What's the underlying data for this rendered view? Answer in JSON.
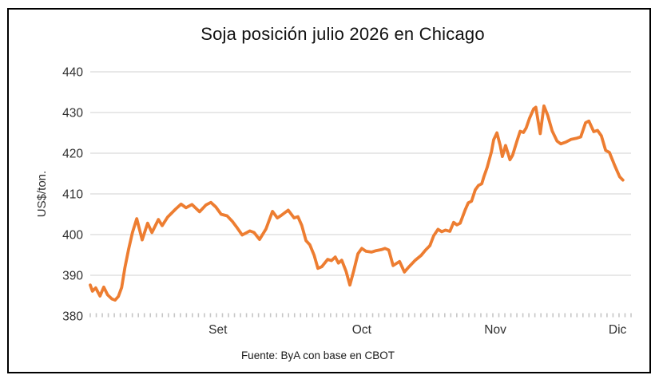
{
  "figure": {
    "title": "Soja posición julio 2026 en Chicago",
    "source": "Fuente: ByA con base en CBOT"
  },
  "chart_data": {
    "type": "line",
    "title": "Soja posición julio 2026 en Chicago",
    "ylabel": "US$/ton.",
    "xlabel": "",
    "ylim": [
      380,
      440
    ],
    "ytick_step": 10,
    "yticks": [
      380,
      390,
      400,
      410,
      420,
      430,
      440
    ],
    "x_ticks": [
      {
        "label": "Set",
        "pos": 0.236
      },
      {
        "label": "Oct",
        "pos": 0.502
      },
      {
        "label": "Nov",
        "pos": 0.749
      },
      {
        "label": "Dic",
        "pos": 0.975
      }
    ],
    "grid": true,
    "legend": "none",
    "line_color": "#ED7D31",
    "gridline_color": "#D9D9D9",
    "tick_color": "#C6C6C6",
    "axis_text_color": "#303030",
    "minor_tick_count": 90,
    "points": [
      [
        0.0,
        387.6
      ],
      [
        0.004,
        386.1
      ],
      [
        0.01,
        386.9
      ],
      [
        0.018,
        384.9
      ],
      [
        0.025,
        387.1
      ],
      [
        0.032,
        385.2
      ],
      [
        0.04,
        384.2
      ],
      [
        0.046,
        383.9
      ],
      [
        0.052,
        384.8
      ],
      [
        0.058,
        387.0
      ],
      [
        0.064,
        391.8
      ],
      [
        0.071,
        396.5
      ],
      [
        0.078,
        400.5
      ],
      [
        0.086,
        403.9
      ],
      [
        0.096,
        398.7
      ],
      [
        0.106,
        402.8
      ],
      [
        0.114,
        400.5
      ],
      [
        0.126,
        403.7
      ],
      [
        0.133,
        402.2
      ],
      [
        0.143,
        404.3
      ],
      [
        0.158,
        406.3
      ],
      [
        0.168,
        407.5
      ],
      [
        0.177,
        406.6
      ],
      [
        0.188,
        407.4
      ],
      [
        0.202,
        405.6
      ],
      [
        0.214,
        407.3
      ],
      [
        0.223,
        407.9
      ],
      [
        0.232,
        406.8
      ],
      [
        0.242,
        405.0
      ],
      [
        0.253,
        404.6
      ],
      [
        0.263,
        403.2
      ],
      [
        0.272,
        401.6
      ],
      [
        0.281,
        399.9
      ],
      [
        0.295,
        400.9
      ],
      [
        0.303,
        400.5
      ],
      [
        0.313,
        398.8
      ],
      [
        0.325,
        401.4
      ],
      [
        0.337,
        405.7
      ],
      [
        0.346,
        404.1
      ],
      [
        0.353,
        404.7
      ],
      [
        0.366,
        406.0
      ],
      [
        0.377,
        404.1
      ],
      [
        0.384,
        404.4
      ],
      [
        0.391,
        402.3
      ],
      [
        0.399,
        398.5
      ],
      [
        0.406,
        397.5
      ],
      [
        0.414,
        394.9
      ],
      [
        0.421,
        391.7
      ],
      [
        0.428,
        392.1
      ],
      [
        0.439,
        393.9
      ],
      [
        0.446,
        393.6
      ],
      [
        0.453,
        394.5
      ],
      [
        0.459,
        393.0
      ],
      [
        0.465,
        393.7
      ],
      [
        0.473,
        391.0
      ],
      [
        0.48,
        387.6
      ],
      [
        0.487,
        391.0
      ],
      [
        0.495,
        395.3
      ],
      [
        0.502,
        396.6
      ],
      [
        0.51,
        395.9
      ],
      [
        0.52,
        395.7
      ],
      [
        0.527,
        396.0
      ],
      [
        0.538,
        396.3
      ],
      [
        0.545,
        396.6
      ],
      [
        0.552,
        396.2
      ],
      [
        0.56,
        392.4
      ],
      [
        0.572,
        393.4
      ],
      [
        0.581,
        390.8
      ],
      [
        0.588,
        391.9
      ],
      [
        0.601,
        393.7
      ],
      [
        0.612,
        394.9
      ],
      [
        0.62,
        396.2
      ],
      [
        0.628,
        397.3
      ],
      [
        0.635,
        399.7
      ],
      [
        0.643,
        401.3
      ],
      [
        0.65,
        400.7
      ],
      [
        0.657,
        401.1
      ],
      [
        0.665,
        400.8
      ],
      [
        0.672,
        403.0
      ],
      [
        0.678,
        402.4
      ],
      [
        0.684,
        402.8
      ],
      [
        0.693,
        406.0
      ],
      [
        0.699,
        407.8
      ],
      [
        0.705,
        408.2
      ],
      [
        0.712,
        411.0
      ],
      [
        0.718,
        412.1
      ],
      [
        0.724,
        412.5
      ],
      [
        0.728,
        414.3
      ],
      [
        0.734,
        416.5
      ],
      [
        0.742,
        420.4
      ],
      [
        0.746,
        423.3
      ],
      [
        0.752,
        425.0
      ],
      [
        0.758,
        421.9
      ],
      [
        0.762,
        419.2
      ],
      [
        0.768,
        421.9
      ],
      [
        0.776,
        418.4
      ],
      [
        0.781,
        419.5
      ],
      [
        0.789,
        423.0
      ],
      [
        0.795,
        425.4
      ],
      [
        0.801,
        425.1
      ],
      [
        0.806,
        426.2
      ],
      [
        0.812,
        428.5
      ],
      [
        0.82,
        430.9
      ],
      [
        0.824,
        431.3
      ],
      [
        0.832,
        424.8
      ],
      [
        0.839,
        431.6
      ],
      [
        0.846,
        429.3
      ],
      [
        0.854,
        425.5
      ],
      [
        0.863,
        423.0
      ],
      [
        0.87,
        422.3
      ],
      [
        0.879,
        422.7
      ],
      [
        0.889,
        423.4
      ],
      [
        0.9,
        423.7
      ],
      [
        0.907,
        424.0
      ],
      [
        0.916,
        427.5
      ],
      [
        0.922,
        427.9
      ],
      [
        0.931,
        425.3
      ],
      [
        0.938,
        425.6
      ],
      [
        0.945,
        424.3
      ],
      [
        0.953,
        420.7
      ],
      [
        0.96,
        420.2
      ],
      [
        0.97,
        416.9
      ],
      [
        0.979,
        414.2
      ],
      [
        0.985,
        413.4
      ]
    ]
  }
}
